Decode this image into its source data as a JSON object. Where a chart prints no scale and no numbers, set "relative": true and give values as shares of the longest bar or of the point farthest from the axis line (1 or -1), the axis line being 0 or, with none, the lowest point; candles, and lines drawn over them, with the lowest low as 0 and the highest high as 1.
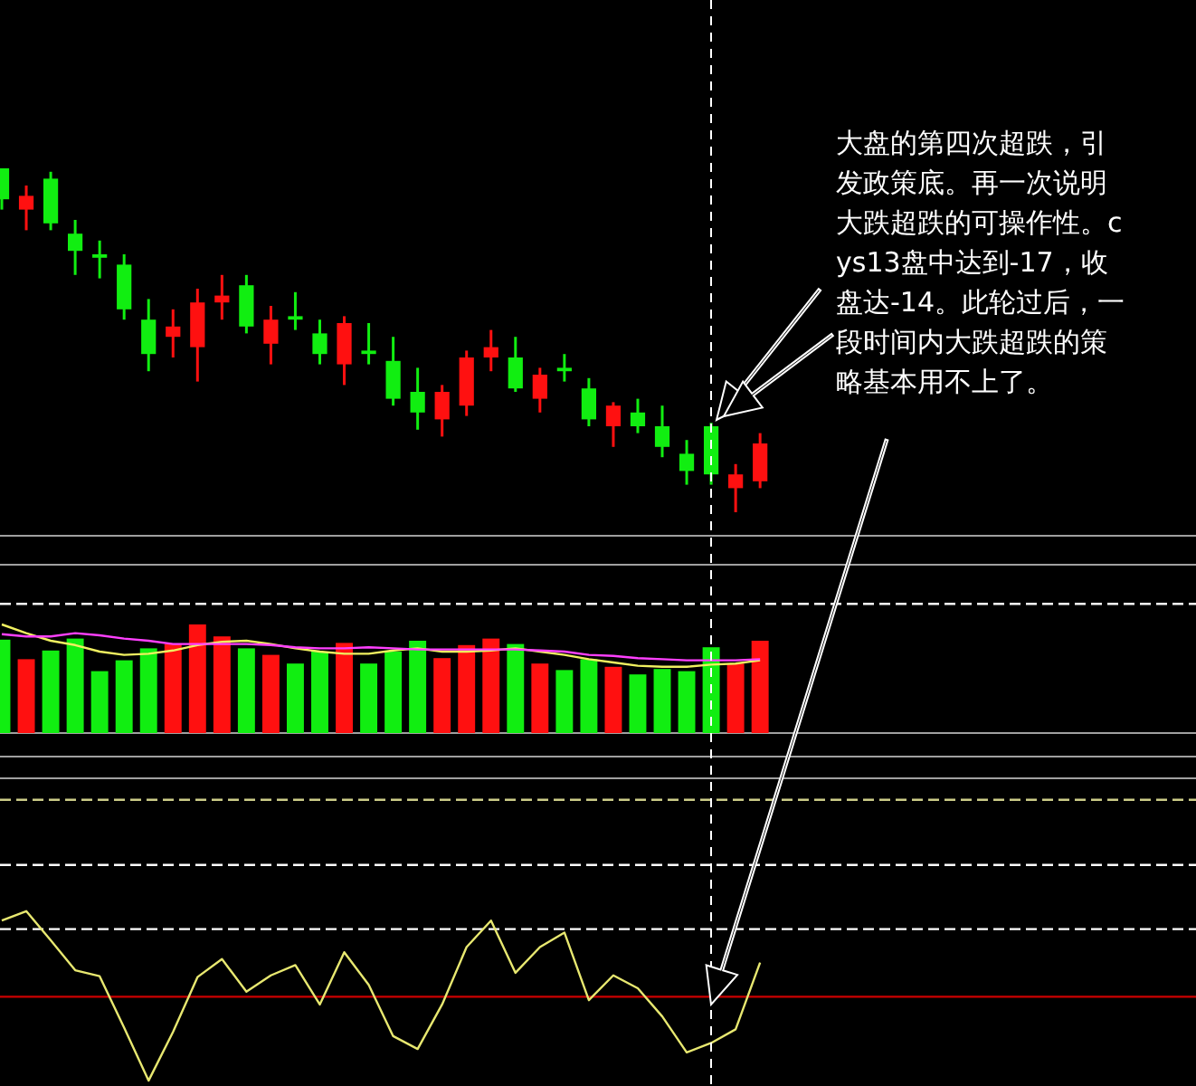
{
  "chart_data": [
    {
      "type": "candlestick",
      "relative": true,
      "categories": [
        null,
        null,
        null,
        null,
        null,
        null,
        null,
        null,
        null,
        null,
        null,
        null,
        null,
        null,
        null,
        null,
        null,
        null,
        null,
        null,
        null,
        null,
        null,
        null,
        null,
        null,
        null,
        null,
        null,
        null,
        null,
        null
      ],
      "ohlc": [
        [
          1.0,
          1.0,
          0.88,
          0.91
        ],
        [
          0.88,
          0.95,
          0.82,
          0.92
        ],
        [
          0.97,
          0.99,
          0.82,
          0.84
        ],
        [
          0.81,
          0.85,
          0.69,
          0.76
        ],
        [
          0.75,
          0.79,
          0.68,
          0.74
        ],
        [
          0.72,
          0.75,
          0.56,
          0.59
        ],
        [
          0.56,
          0.62,
          0.41,
          0.46
        ],
        [
          0.51,
          0.59,
          0.45,
          0.54
        ],
        [
          0.48,
          0.65,
          0.38,
          0.61
        ],
        [
          0.61,
          0.69,
          0.56,
          0.63
        ],
        [
          0.66,
          0.69,
          0.52,
          0.54
        ],
        [
          0.49,
          0.6,
          0.43,
          0.56
        ],
        [
          0.57,
          0.64,
          0.53,
          0.56
        ],
        [
          0.52,
          0.56,
          0.43,
          0.46
        ],
        [
          0.43,
          0.57,
          0.37,
          0.55
        ],
        [
          0.47,
          0.55,
          0.43,
          0.46
        ],
        [
          0.44,
          0.51,
          0.31,
          0.33
        ],
        [
          0.35,
          0.42,
          0.24,
          0.29
        ],
        [
          0.27,
          0.37,
          0.22,
          0.35
        ],
        [
          0.31,
          0.47,
          0.28,
          0.45
        ],
        [
          0.45,
          0.53,
          0.41,
          0.48
        ],
        [
          0.45,
          0.51,
          0.35,
          0.36
        ],
        [
          0.33,
          0.42,
          0.29,
          0.4
        ],
        [
          0.42,
          0.46,
          0.38,
          0.41
        ],
        [
          0.36,
          0.39,
          0.25,
          0.27
        ],
        [
          0.25,
          0.32,
          0.19,
          0.31
        ],
        [
          0.29,
          0.33,
          0.23,
          0.25
        ],
        [
          0.25,
          0.31,
          0.16,
          0.19
        ],
        [
          0.17,
          0.21,
          0.08,
          0.12
        ],
        [
          0.25,
          0.26,
          0.08,
          0.11
        ],
        [
          0.07,
          0.14,
          0.0,
          0.11
        ],
        [
          0.09,
          0.23,
          0.07,
          0.2
        ]
      ],
      "colors": [
        "#11ee11",
        "#ff1010",
        "#11ee11",
        "#11ee11",
        "#11ee11",
        "#11ee11",
        "#11ee11",
        "#ff1010",
        "#ff1010",
        "#ff1010",
        "#11ee11",
        "#ff1010",
        "#11ee11",
        "#11ee11",
        "#ff1010",
        "#11ee11",
        "#11ee11",
        "#11ee11",
        "#ff1010",
        "#ff1010",
        "#ff1010",
        "#11ee11",
        "#ff1010",
        "#11ee11",
        "#11ee11",
        "#ff1010",
        "#11ee11",
        "#11ee11",
        "#11ee11",
        "#11ee11",
        "#ff1010",
        "#ff1010"
      ],
      "annotations": [
        "大盘的第四次超跌，引发政策底。再一次说明大跌超跌的可操作性。cys13盘中达到-17，收盘达-14。此轮过后，一段时间内大跌超跌的策略基本用不上了。"
      ]
    },
    {
      "type": "bar",
      "relative": true,
      "categories": [
        null,
        null,
        null,
        null,
        null,
        null,
        null,
        null,
        null,
        null,
        null,
        null,
        null,
        null,
        null,
        null,
        null,
        null,
        null,
        null,
        null,
        null,
        null,
        null,
        null,
        null,
        null,
        null,
        null,
        null,
        null,
        null
      ],
      "series": [
        {
          "type": "bar",
          "values": [
            0.86,
            0.68,
            0.76,
            0.87,
            0.57,
            0.67,
            0.78,
            0.82,
            1.0,
            0.89,
            0.78,
            0.72,
            0.64,
            0.75,
            0.83,
            0.64,
            0.75,
            0.85,
            0.69,
            0.81,
            0.87,
            0.82,
            0.64,
            0.58,
            0.68,
            0.61,
            0.54,
            0.59,
            0.57,
            0.79,
            0.64,
            0.85
          ],
          "colors": [
            "#11ee11",
            "#ff1010",
            "#11ee11",
            "#11ee11",
            "#11ee11",
            "#11ee11",
            "#11ee11",
            "#ff1010",
            "#ff1010",
            "#ff1010",
            "#11ee11",
            "#ff1010",
            "#11ee11",
            "#11ee11",
            "#ff1010",
            "#11ee11",
            "#11ee11",
            "#11ee11",
            "#ff1010",
            "#ff1010",
            "#ff1010",
            "#11ee11",
            "#ff1010",
            "#11ee11",
            "#11ee11",
            "#ff1010",
            "#11ee11",
            "#11ee11",
            "#11ee11",
            "#11ee11",
            "#ff1010",
            "#ff1010"
          ]
        },
        {
          "type": "line",
          "color": "#f0f060",
          "values": [
            1.0,
            0.92,
            0.85,
            0.81,
            0.75,
            0.72,
            0.73,
            0.76,
            0.81,
            0.84,
            0.85,
            0.82,
            0.78,
            0.75,
            0.73,
            0.73,
            0.76,
            0.78,
            0.75,
            0.75,
            0.76,
            0.78,
            0.75,
            0.72,
            0.68,
            0.65,
            0.62,
            0.61,
            0.61,
            0.63,
            0.64,
            0.67
          ]
        },
        {
          "type": "line",
          "color": "#ff40ff",
          "values": [
            0.91,
            0.89,
            0.89,
            0.92,
            0.9,
            0.87,
            0.85,
            0.82,
            0.82,
            0.82,
            0.82,
            0.81,
            0.79,
            0.78,
            0.78,
            0.79,
            0.78,
            0.77,
            0.77,
            0.77,
            0.77,
            0.77,
            0.76,
            0.75,
            0.72,
            0.71,
            0.69,
            0.68,
            0.67,
            0.67,
            0.67,
            0.68
          ]
        }
      ],
      "ref_lines": [
        {
          "axis": "y",
          "value": 1.19,
          "color": "#ffffff",
          "line_style": "dashed"
        }
      ]
    },
    {
      "type": "line",
      "relative": true,
      "categories": [
        null,
        null,
        null,
        null,
        null,
        null,
        null,
        null,
        null,
        null,
        null,
        null,
        null,
        null,
        null,
        null,
        null,
        null,
        null,
        null,
        null,
        null,
        null,
        null,
        null,
        null,
        null,
        null,
        null,
        null,
        null,
        null
      ],
      "series": [
        {
          "color": "#e8e870",
          "values": [
            0.89,
            1.0,
            0.66,
            0.31,
            0.24,
            -0.36,
            -0.98,
            -0.41,
            0.23,
            0.44,
            0.06,
            0.25,
            0.37,
            -0.09,
            0.52,
            0.14,
            -0.46,
            -0.61,
            -0.09,
            0.58,
            0.89,
            0.28,
            0.58,
            0.75,
            -0.04,
            0.25,
            0.1,
            -0.23,
            -0.65,
            -0.54,
            -0.38,
            0.4
          ]
        }
      ],
      "ref_lines": [
        {
          "axis": "y",
          "value": 0,
          "color": "#cc0000",
          "line_style": "solid"
        },
        {
          "axis": "y",
          "value": 0.79,
          "color": "#ffffff",
          "line_style": "dashed"
        },
        {
          "axis": "y",
          "value": 1.54,
          "color": "#ffffff",
          "line_style": "dashed"
        },
        {
          "axis": "y",
          "value": 2.3,
          "color": "#cccc88",
          "line_style": "dashed"
        }
      ]
    }
  ]
}
